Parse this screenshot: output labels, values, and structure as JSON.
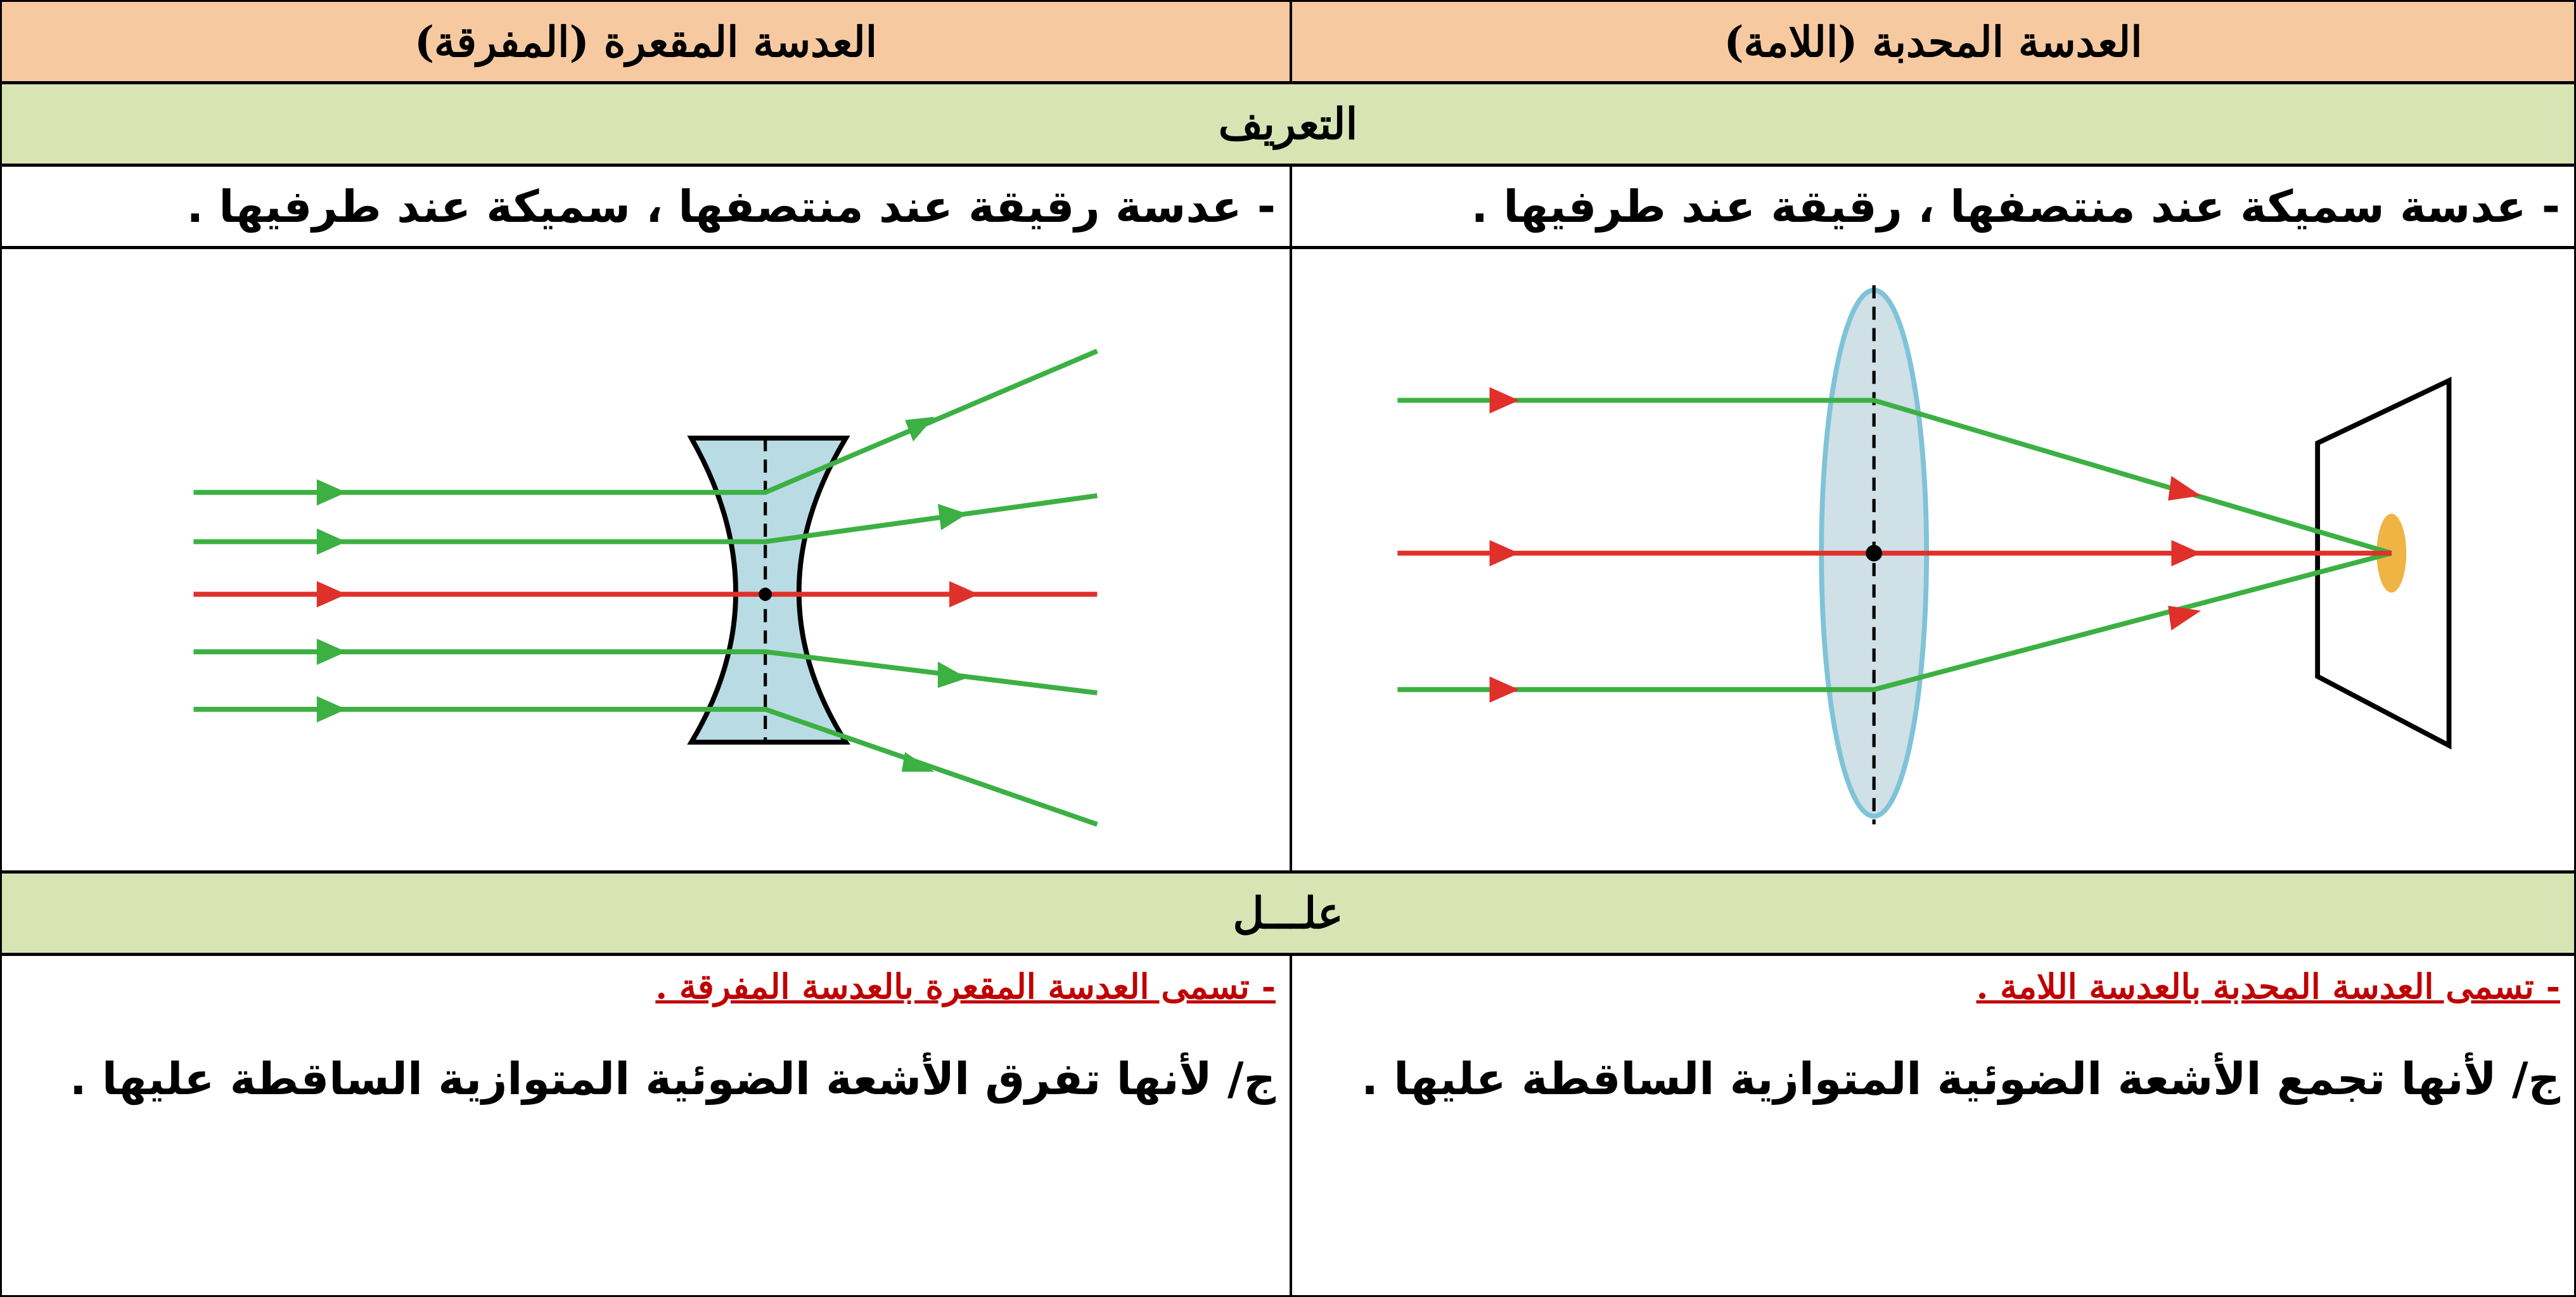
{
  "header": [
    "العدسة المحدبة (اللامة)",
    "العدسة المقعرة (المفرقة)"
  ],
  "definition": {
    "title": "التعريف",
    "cells": [
      "- عدسة سميكة عند منتصفها ، رقيقة عند طرفيها .",
      "- عدسة رقيقة عند منتصفها ، سميكة عند طرفيها ."
    ]
  },
  "reason": {
    "title": "علـــل",
    "cells": [
      {
        "question": "- تسمى العدسة المحدبة بالعدسة اللامة .",
        "answer": "ج/ لأنها تجمع الأشعة الضوئية المتوازية الساقطة عليها ."
      },
      {
        "question": "- تسمى العدسة المقعرة بالعدسة المفرقة .",
        "answer": "ج/ لأنها تفرق الأشعة الضوئية المتوازية الساقطة عليها ."
      }
    ]
  }
}
